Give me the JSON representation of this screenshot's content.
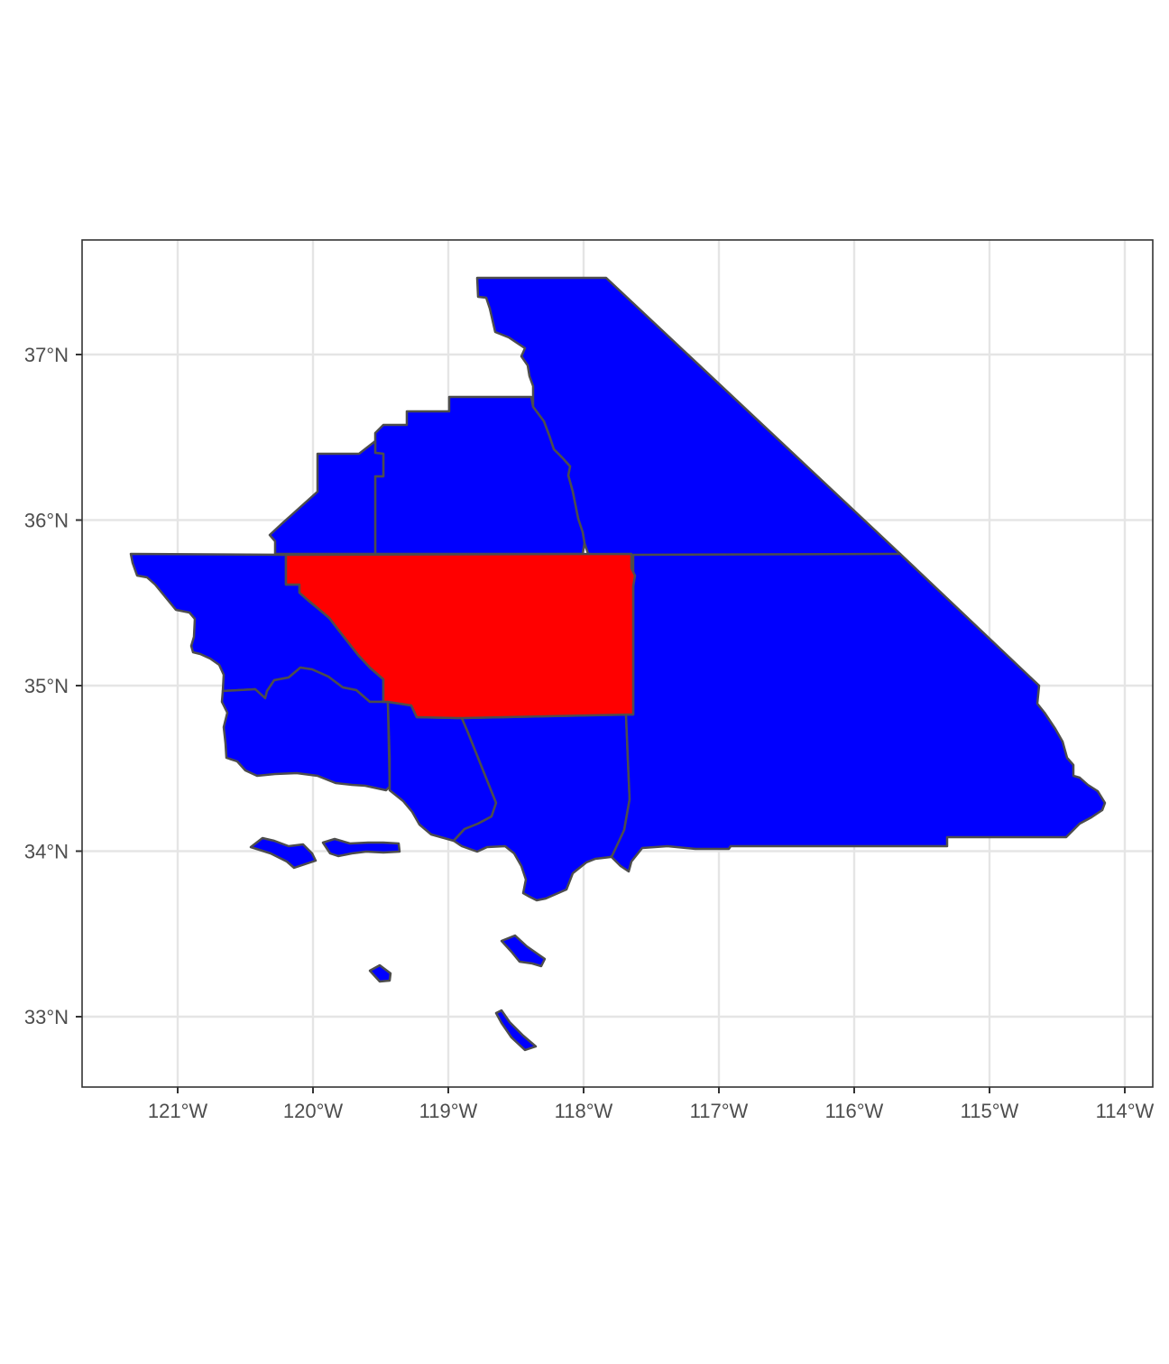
{
  "chart_data": {
    "type": "map",
    "region": "Southern California counties",
    "x_axis": {
      "ticks": [
        {
          "value": -121,
          "label": "121°W"
        },
        {
          "value": -120,
          "label": "120°W"
        },
        {
          "value": -119,
          "label": "119°W"
        },
        {
          "value": -118,
          "label": "118°W"
        },
        {
          "value": -117,
          "label": "117°W"
        },
        {
          "value": -116,
          "label": "116°W"
        },
        {
          "value": -115,
          "label": "115°W"
        },
        {
          "value": -114,
          "label": "114°W"
        }
      ]
    },
    "y_axis": {
      "ticks": [
        {
          "value": 33,
          "label": "33°N"
        },
        {
          "value": 34,
          "label": "34°N"
        },
        {
          "value": 35,
          "label": "35°N"
        },
        {
          "value": 36,
          "label": "36°N"
        },
        {
          "value": 37,
          "label": "37°N"
        }
      ]
    },
    "grid": true,
    "legend": "none",
    "colors": {
      "highlighted": "#ff0000",
      "default": "#0000ff",
      "border": "#4d4d4d",
      "grid": "#e5e5e5"
    },
    "regions": [
      {
        "id": "inyo",
        "fill": "blue"
      },
      {
        "id": "tulare",
        "fill": "blue"
      },
      {
        "id": "kings",
        "fill": "blue"
      },
      {
        "id": "san-luis-obispo",
        "fill": "blue"
      },
      {
        "id": "kern",
        "fill": "red"
      },
      {
        "id": "san-bernardino",
        "fill": "blue"
      },
      {
        "id": "santa-barbara",
        "fill": "blue"
      },
      {
        "id": "ventura",
        "fill": "blue"
      },
      {
        "id": "los-angeles",
        "fill": "blue"
      },
      {
        "id": "channel-islands",
        "fill": "blue"
      },
      {
        "id": "catalina-island",
        "fill": "blue"
      },
      {
        "id": "san-clemente-island",
        "fill": "blue"
      },
      {
        "id": "san-nicolas-island",
        "fill": "blue"
      }
    ]
  }
}
